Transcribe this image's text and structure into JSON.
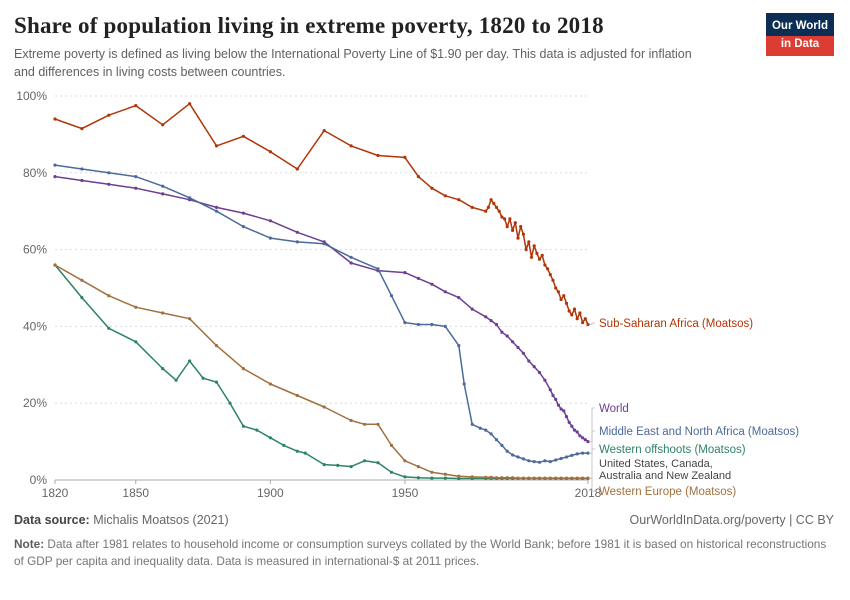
{
  "header": {
    "title": "Share of population living in extreme poverty, 1820 to 2018",
    "subtitle": "Extreme poverty is defined as living below the International Poverty Line of $1.90 per day. This data is adjusted for inflation and differences in living costs between countries.",
    "logo": {
      "line1": "Our World",
      "line2": "in Data",
      "bg_color": "#0D2E54",
      "accent_color": "#DC3D33"
    }
  },
  "chart_data": {
    "type": "line",
    "title": "Share of population living in extreme poverty, 1820 to 2018",
    "xlabel": "",
    "ylabel": "",
    "xlim": [
      1820,
      2018
    ],
    "ylim": [
      0,
      100
    ],
    "x_ticks": [
      1820,
      1850,
      1900,
      1950,
      2018
    ],
    "x_tick_labels": [
      "1820",
      "1850",
      "1900",
      "1950",
      "2018"
    ],
    "y_ticks": [
      0,
      20,
      40,
      60,
      80,
      100
    ],
    "y_tick_labels": [
      "0%",
      "20%",
      "40%",
      "60%",
      "80%",
      "100%"
    ],
    "grid": "horizontal-dashed",
    "legend_position": "right-end-labels",
    "series": [
      {
        "name": "Sub-Saharan Africa (Moatsos)",
        "color": "#B13507",
        "points": [
          [
            1820,
            94
          ],
          [
            1830,
            91.5
          ],
          [
            1840,
            95
          ],
          [
            1850,
            97.5
          ],
          [
            1860,
            92.5
          ],
          [
            1870,
            98
          ],
          [
            1880,
            87
          ],
          [
            1890,
            89.5
          ],
          [
            1900,
            85.5
          ],
          [
            1910,
            81
          ],
          [
            1920,
            91
          ],
          [
            1930,
            87
          ],
          [
            1940,
            84.5
          ],
          [
            1950,
            84
          ],
          [
            1955,
            79
          ],
          [
            1960,
            76
          ],
          [
            1965,
            74
          ],
          [
            1970,
            73
          ],
          [
            1975,
            71
          ],
          [
            1980,
            70
          ],
          [
            1981,
            71
          ],
          [
            1982,
            73
          ],
          [
            1983,
            72
          ],
          [
            1984,
            71
          ],
          [
            1985,
            70
          ],
          [
            1986,
            68.5
          ],
          [
            1987,
            68
          ],
          [
            1988,
            66
          ],
          [
            1989,
            68
          ],
          [
            1990,
            65
          ],
          [
            1991,
            67
          ],
          [
            1992,
            63
          ],
          [
            1993,
            66
          ],
          [
            1994,
            64
          ],
          [
            1995,
            60
          ],
          [
            1996,
            62
          ],
          [
            1997,
            58
          ],
          [
            1998,
            61
          ],
          [
            1999,
            59
          ],
          [
            2000,
            57.5
          ],
          [
            2001,
            58.5
          ],
          [
            2002,
            56
          ],
          [
            2003,
            55
          ],
          [
            2004,
            53.5
          ],
          [
            2005,
            52
          ],
          [
            2006,
            50
          ],
          [
            2007,
            49
          ],
          [
            2008,
            47
          ],
          [
            2009,
            48
          ],
          [
            2010,
            46
          ],
          [
            2011,
            44
          ],
          [
            2012,
            43
          ],
          [
            2013,
            44.5
          ],
          [
            2014,
            42
          ],
          [
            2015,
            43.5
          ],
          [
            2016,
            41
          ],
          [
            2017,
            42
          ],
          [
            2018,
            40.5
          ]
        ]
      },
      {
        "name": "World",
        "color": "#6D3E91",
        "points": [
          [
            1820,
            79
          ],
          [
            1830,
            78
          ],
          [
            1840,
            77
          ],
          [
            1850,
            76
          ],
          [
            1860,
            74.5
          ],
          [
            1870,
            73
          ],
          [
            1880,
            71
          ],
          [
            1890,
            69.5
          ],
          [
            1900,
            67.5
          ],
          [
            1910,
            64.5
          ],
          [
            1920,
            62
          ],
          [
            1930,
            56.5
          ],
          [
            1940,
            54.5
          ],
          [
            1950,
            54
          ],
          [
            1955,
            52.5
          ],
          [
            1960,
            51
          ],
          [
            1965,
            49
          ],
          [
            1970,
            47.5
          ],
          [
            1975,
            44.5
          ],
          [
            1980,
            42.5
          ],
          [
            1982,
            41.5
          ],
          [
            1984,
            40.5
          ],
          [
            1986,
            38.5
          ],
          [
            1988,
            37.5
          ],
          [
            1990,
            36
          ],
          [
            1992,
            34.5
          ],
          [
            1994,
            33
          ],
          [
            1996,
            31
          ],
          [
            1998,
            29.5
          ],
          [
            2000,
            28
          ],
          [
            2002,
            26
          ],
          [
            2004,
            23.5
          ],
          [
            2005,
            22
          ],
          [
            2006,
            21
          ],
          [
            2007,
            19.5
          ],
          [
            2008,
            18.5
          ],
          [
            2009,
            18
          ],
          [
            2010,
            16.5
          ],
          [
            2011,
            15
          ],
          [
            2012,
            14
          ],
          [
            2013,
            13
          ],
          [
            2014,
            12.5
          ],
          [
            2015,
            11.5
          ],
          [
            2016,
            11
          ],
          [
            2017,
            10.5
          ],
          [
            2018,
            10
          ]
        ]
      },
      {
        "name": "Middle East and North Africa (Moatsos)",
        "color": "#4C6A9C",
        "points": [
          [
            1820,
            82
          ],
          [
            1830,
            81
          ],
          [
            1840,
            80
          ],
          [
            1850,
            79
          ],
          [
            1860,
            76.5
          ],
          [
            1870,
            73.5
          ],
          [
            1880,
            70
          ],
          [
            1890,
            66
          ],
          [
            1900,
            63
          ],
          [
            1910,
            62
          ],
          [
            1920,
            61.5
          ],
          [
            1930,
            58
          ],
          [
            1940,
            55
          ],
          [
            1945,
            48
          ],
          [
            1950,
            41
          ],
          [
            1955,
            40.5
          ],
          [
            1960,
            40.5
          ],
          [
            1965,
            40
          ],
          [
            1970,
            35
          ],
          [
            1972,
            25
          ],
          [
            1975,
            14.5
          ],
          [
            1978,
            13.5
          ],
          [
            1980,
            13
          ],
          [
            1982,
            12
          ],
          [
            1984,
            10.5
          ],
          [
            1986,
            9
          ],
          [
            1988,
            7.5
          ],
          [
            1990,
            6.5
          ],
          [
            1992,
            6
          ],
          [
            1994,
            5.5
          ],
          [
            1996,
            5
          ],
          [
            1998,
            4.8
          ],
          [
            2000,
            4.6
          ],
          [
            2002,
            5
          ],
          [
            2004,
            4.8
          ],
          [
            2006,
            5.2
          ],
          [
            2008,
            5.6
          ],
          [
            2010,
            6
          ],
          [
            2012,
            6.4
          ],
          [
            2014,
            6.8
          ],
          [
            2016,
            7
          ],
          [
            2018,
            7
          ]
        ]
      },
      {
        "name": "Western offshoots (Moatsos)",
        "color": "#2C8465",
        "sub_label_lines": [
          "United States, Canada,",
          "Australia and New Zealand"
        ],
        "sub_label_color": "#454545",
        "points": [
          [
            1820,
            56
          ],
          [
            1830,
            47.5
          ],
          [
            1840,
            39.5
          ],
          [
            1850,
            36
          ],
          [
            1860,
            29
          ],
          [
            1865,
            26
          ],
          [
            1870,
            31
          ],
          [
            1875,
            26.5
          ],
          [
            1880,
            25.5
          ],
          [
            1885,
            20
          ],
          [
            1890,
            14
          ],
          [
            1895,
            13
          ],
          [
            1900,
            11
          ],
          [
            1905,
            9
          ],
          [
            1910,
            7.5
          ],
          [
            1913,
            7
          ],
          [
            1920,
            4
          ],
          [
            1925,
            3.8
          ],
          [
            1930,
            3.5
          ],
          [
            1935,
            5
          ],
          [
            1940,
            4.5
          ],
          [
            1945,
            2
          ],
          [
            1950,
            0.8
          ],
          [
            1955,
            0.6
          ],
          [
            1960,
            0.5
          ],
          [
            1965,
            0.5
          ],
          [
            1970,
            0.4
          ],
          [
            1975,
            0.4
          ],
          [
            1980,
            0.4
          ],
          [
            1982,
            0.4
          ],
          [
            1984,
            0.4
          ],
          [
            1986,
            0.4
          ],
          [
            1988,
            0.4
          ],
          [
            1990,
            0.4
          ],
          [
            1992,
            0.4
          ],
          [
            1994,
            0.4
          ],
          [
            1996,
            0.4
          ],
          [
            1998,
            0.4
          ],
          [
            2000,
            0.4
          ],
          [
            2002,
            0.4
          ],
          [
            2004,
            0.4
          ],
          [
            2006,
            0.4
          ],
          [
            2008,
            0.4
          ],
          [
            2010,
            0.4
          ],
          [
            2012,
            0.4
          ],
          [
            2014,
            0.4
          ],
          [
            2016,
            0.4
          ],
          [
            2018,
            0.4
          ]
        ]
      },
      {
        "name": "Western Europe (Moatsos)",
        "color": "#A2703F",
        "points": [
          [
            1820,
            56
          ],
          [
            1830,
            52
          ],
          [
            1840,
            48
          ],
          [
            1850,
            45
          ],
          [
            1860,
            43.5
          ],
          [
            1870,
            42
          ],
          [
            1880,
            35
          ],
          [
            1890,
            29
          ],
          [
            1900,
            25
          ],
          [
            1910,
            22
          ],
          [
            1920,
            19
          ],
          [
            1930,
            15.5
          ],
          [
            1935,
            14.5
          ],
          [
            1940,
            14.5
          ],
          [
            1945,
            9
          ],
          [
            1950,
            5
          ],
          [
            1955,
            3.5
          ],
          [
            1960,
            2
          ],
          [
            1965,
            1.5
          ],
          [
            1970,
            1
          ],
          [
            1975,
            0.8
          ],
          [
            1980,
            0.7
          ],
          [
            1982,
            0.7
          ],
          [
            1984,
            0.6
          ],
          [
            1986,
            0.6
          ],
          [
            1988,
            0.6
          ],
          [
            1990,
            0.6
          ],
          [
            1992,
            0.5
          ],
          [
            1994,
            0.5
          ],
          [
            1996,
            0.5
          ],
          [
            1998,
            0.5
          ],
          [
            2000,
            0.5
          ],
          [
            2002,
            0.5
          ],
          [
            2004,
            0.5
          ],
          [
            2006,
            0.5
          ],
          [
            2008,
            0.5
          ],
          [
            2010,
            0.5
          ],
          [
            2012,
            0.5
          ],
          [
            2014,
            0.5
          ],
          [
            2016,
            0.5
          ],
          [
            2018,
            0.5
          ]
        ]
      }
    ]
  },
  "footer": {
    "source_label": "Data source:",
    "source_text": " Michalis Moatsos (2021)",
    "attribution": "OurWorldInData.org/poverty | CC BY",
    "note_label": "Note:",
    "note_text": " Data after 1981 relates to household income or consumption surveys collated by the World Bank; before 1981 it is based on historical reconstructions of GDP per capita and inequality data. Data is measured in international-$ at 2011 prices."
  }
}
